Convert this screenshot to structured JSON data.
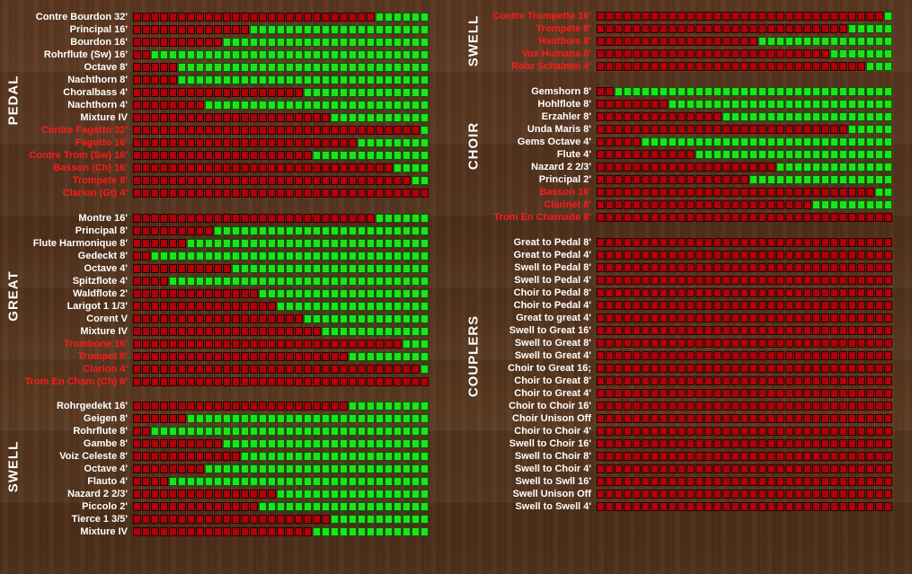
{
  "sections": [
    {
      "id": "pedal",
      "title": "PEDAL",
      "x": 0,
      "top": 12,
      "labelRight": 142,
      "barLeft": 148,
      "titleX": 15,
      "titleCenterY": 112,
      "stops": [
        {
          "name": "Contre Bourdon 32'",
          "red": false,
          "on": 6
        },
        {
          "name": "Principal 16'",
          "red": false,
          "on": 20
        },
        {
          "name": "Bourdon 16'",
          "red": false,
          "on": 23
        },
        {
          "name": "Rohrflute (Sw) 16'",
          "red": false,
          "on": 31
        },
        {
          "name": "Octave 8'",
          "red": false,
          "on": 28
        },
        {
          "name": "Nachthorn 8'",
          "red": false,
          "on": 28
        },
        {
          "name": "Choralbass 4'",
          "red": false,
          "on": 14
        },
        {
          "name": "Nachthorn 4'",
          "red": false,
          "on": 25
        },
        {
          "name": "Mixture IV",
          "red": false,
          "on": 11
        },
        {
          "name": "Contre Fagatto 32'",
          "red": true,
          "on": 1
        },
        {
          "name": "Fagotto 16'",
          "red": true,
          "on": 8
        },
        {
          "name": "Contre Trom (Sw) 16'",
          "red": true,
          "on": 13
        },
        {
          "name": "Basson (Ch) 16'",
          "red": true,
          "on": 4
        },
        {
          "name": "Trompete 8'",
          "red": true,
          "on": 2
        },
        {
          "name": "Clarion (Gt) 4'",
          "red": true,
          "on": 0
        }
      ]
    },
    {
      "id": "great",
      "title": "GREAT",
      "x": 0,
      "top": 236,
      "labelRight": 142,
      "barLeft": 148,
      "titleX": 15,
      "titleCenterY": 330,
      "stops": [
        {
          "name": "Montre 16'",
          "red": false,
          "on": 6
        },
        {
          "name": "Principal 8'",
          "red": false,
          "on": 24
        },
        {
          "name": "Flute Harmonique 8'",
          "red": false,
          "on": 27
        },
        {
          "name": "Gedeckt 8'",
          "red": false,
          "on": 31
        },
        {
          "name": "Octave 4'",
          "red": false,
          "on": 22
        },
        {
          "name": "Spitzflote 4'",
          "red": false,
          "on": 29
        },
        {
          "name": "Waldflote 2'",
          "red": false,
          "on": 19
        },
        {
          "name": "Larigot 1 1/3'",
          "red": false,
          "on": 17
        },
        {
          "name": "Corent V",
          "red": false,
          "on": 14
        },
        {
          "name": "Mixture IV",
          "red": false,
          "on": 12
        },
        {
          "name": "Trombone 16'",
          "red": true,
          "on": 3
        },
        {
          "name": "Trumpet 8'",
          "red": true,
          "on": 9
        },
        {
          "name": "Clarion 4'",
          "red": true,
          "on": 1
        },
        {
          "name": "Trom En Cham (Ch) 8'",
          "red": true,
          "on": 0
        }
      ]
    },
    {
      "id": "swell",
      "title": "SWELL",
      "x": 0,
      "top": 445,
      "labelRight": 142,
      "barLeft": 148,
      "titleX": 15,
      "titleCenterY": 520,
      "stops": [
        {
          "name": "Rohrgedekt 16'",
          "red": false,
          "on": 9
        },
        {
          "name": "Geigen 8'",
          "red": false,
          "on": 27
        },
        {
          "name": "Rohrflute 8'",
          "red": false,
          "on": 31
        },
        {
          "name": "Gambe 8'",
          "red": false,
          "on": 23
        },
        {
          "name": "Voiz Celeste 8'",
          "red": false,
          "on": 21
        },
        {
          "name": "Octave 4'",
          "red": false,
          "on": 25
        },
        {
          "name": "Flauto 4'",
          "red": false,
          "on": 29
        },
        {
          "name": "Nazard 2 2/3'",
          "red": false,
          "on": 17
        },
        {
          "name": "Piccolo 2'",
          "red": false,
          "on": 19
        },
        {
          "name": "Tierce 1 3/5'",
          "red": false,
          "on": 11
        },
        {
          "name": "Mixture IV",
          "red": false,
          "on": 13
        }
      ]
    },
    {
      "id": "swell2",
      "title": "SWELL",
      "x": 0,
      "top": 11,
      "labelRight": 658,
      "barLeft": 664,
      "titleX": 527,
      "titleCenterY": 46,
      "stops": [
        {
          "name": "Contre Trompette 16'",
          "red": true,
          "on": 1
        },
        {
          "name": "Trompete 8'",
          "red": true,
          "on": 5
        },
        {
          "name": "Hautbois 8'",
          "red": true,
          "on": 15
        },
        {
          "name": "Vox Humana 8'",
          "red": true,
          "on": 7
        },
        {
          "name": "Rohr Schalmei 4'",
          "red": true,
          "on": 3
        }
      ]
    },
    {
      "id": "choir",
      "title": "CHOIR",
      "x": 0,
      "top": 95,
      "labelRight": 658,
      "barLeft": 664,
      "titleX": 527,
      "titleCenterY": 163,
      "stops": [
        {
          "name": "Gemshorn 8'",
          "red": false,
          "on": 31
        },
        {
          "name": "Hohlflote 8'",
          "red": false,
          "on": 25
        },
        {
          "name": "Erzahler 8'",
          "red": false,
          "on": 19
        },
        {
          "name": "Unda Maris 8'",
          "red": false,
          "on": 5
        },
        {
          "name": "Gems Octave 4'",
          "red": false,
          "on": 28
        },
        {
          "name": "Flute 4'",
          "red": false,
          "on": 22
        },
        {
          "name": "Nazard 2 2/3'",
          "red": false,
          "on": 13
        },
        {
          "name": "Principal 2'",
          "red": false,
          "on": 16
        },
        {
          "name": "Basson 16'",
          "red": true,
          "on": 2
        },
        {
          "name": "Clarinet 8'",
          "red": true,
          "on": 9
        },
        {
          "name": "Trom En Chamade 8'",
          "red": true,
          "on": 0
        }
      ]
    },
    {
      "id": "couplers",
      "title": "COUPLERS",
      "x": 0,
      "top": 263,
      "labelRight": 658,
      "barLeft": 664,
      "titleX": 527,
      "titleCenterY": 397,
      "stops": [
        {
          "name": "Great to Pedal 8'",
          "red": false,
          "on": 0
        },
        {
          "name": "Great to Pedal 4'",
          "red": false,
          "on": 0
        },
        {
          "name": "Swell to Pedal 8'",
          "red": false,
          "on": 0
        },
        {
          "name": "Swell to Pedal 4'",
          "red": false,
          "on": 0
        },
        {
          "name": "Choir to Pedal 8'",
          "red": false,
          "on": 0
        },
        {
          "name": "Choir to Pedal 4'",
          "red": false,
          "on": 0
        },
        {
          "name": "Great to great 4'",
          "red": false,
          "on": 0
        },
        {
          "name": "Swell to Great 16'",
          "red": false,
          "on": 0
        },
        {
          "name": "Swell to Great 8'",
          "red": false,
          "on": 0
        },
        {
          "name": "Swell to Great 4'",
          "red": false,
          "on": 0
        },
        {
          "name": "Choir to Great 16;",
          "red": false,
          "on": 0
        },
        {
          "name": "Choir to Great 8'",
          "red": false,
          "on": 0
        },
        {
          "name": "Choir to Great 4'",
          "red": false,
          "on": 0
        },
        {
          "name": "Choir to Choir 16'",
          "red": false,
          "on": 0
        },
        {
          "name": "Choir Unison Off",
          "red": false,
          "on": 0
        },
        {
          "name": "Choir to Choir 4'",
          "red": false,
          "on": 0
        },
        {
          "name": "Swell to Choir 16'",
          "red": false,
          "on": 0
        },
        {
          "name": "Swell to Choir 8'",
          "red": false,
          "on": 0
        },
        {
          "name": "Swell to Choir 4'",
          "red": false,
          "on": 0
        },
        {
          "name": "Swell to Swll 16'",
          "red": false,
          "on": 0
        },
        {
          "name": "Swell Unison Off",
          "red": false,
          "on": 0
        },
        {
          "name": "Swell to Swell 4'",
          "red": false,
          "on": 0
        }
      ]
    }
  ],
  "cells_per_bar": 33,
  "colors": {
    "off": "#b0000a",
    "on": "#19e619",
    "label_white": "#ffffff",
    "label_red": "#ff1a1a"
  }
}
